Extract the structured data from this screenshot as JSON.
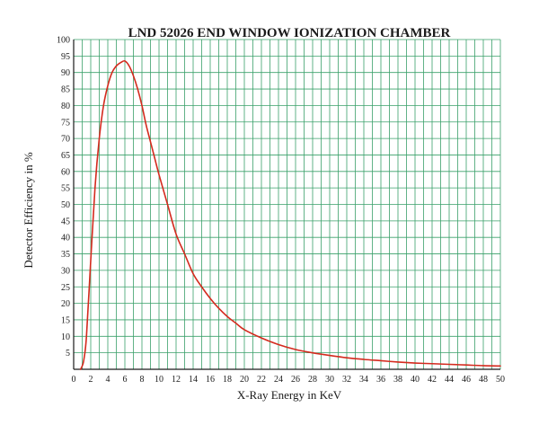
{
  "chart_data": {
    "type": "line",
    "title": "LND 52026 END WINDOW IONIZATION CHAMBER",
    "xlabel": "X-Ray Energy in KeV",
    "ylabel": "Detector Efficiency in  %",
    "xlim": [
      0,
      50
    ],
    "ylim": [
      0,
      100
    ],
    "x_ticks": [
      0,
      2,
      4,
      6,
      8,
      10,
      12,
      14,
      16,
      18,
      20,
      22,
      24,
      26,
      28,
      30,
      32,
      34,
      36,
      38,
      40,
      42,
      44,
      46,
      48,
      50
    ],
    "y_ticks": [
      5,
      10,
      15,
      20,
      25,
      30,
      35,
      40,
      45,
      50,
      55,
      60,
      65,
      70,
      75,
      80,
      85,
      90,
      95,
      100
    ],
    "grid": true,
    "series": [
      {
        "color": "#d42a1e",
        "x": [
          0.8,
          1.0,
          1.2,
          1.5,
          2.0,
          2.5,
          3.0,
          3.5,
          4.0,
          4.5,
          5.0,
          5.5,
          6.0,
          6.5,
          7.0,
          7.5,
          8.0,
          8.5,
          9.0,
          9.5,
          10,
          11,
          12,
          13,
          14,
          15,
          16,
          17,
          18,
          19,
          20,
          22,
          24,
          26,
          28,
          30,
          32,
          34,
          36,
          38,
          40,
          42,
          44,
          46,
          48,
          50
        ],
        "y": [
          0,
          1,
          3,
          10,
          33,
          55,
          70,
          80,
          86,
          90,
          92,
          93,
          93.5,
          92,
          89,
          85,
          80,
          74,
          69,
          64,
          59,
          50,
          41,
          35,
          29,
          25,
          21.5,
          18.5,
          16,
          14,
          12,
          9.5,
          7.5,
          6,
          5,
          4.2,
          3.5,
          3,
          2.6,
          2.2,
          1.9,
          1.7,
          1.5,
          1.3,
          1.1,
          1
        ]
      }
    ]
  },
  "colors": {
    "grid": "#3aa06a",
    "curve": "#d42a1e",
    "axis": "#1a1a1a"
  }
}
